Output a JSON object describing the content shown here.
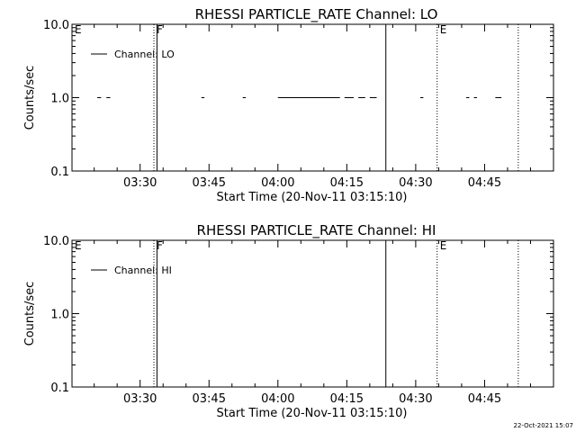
{
  "timestamp": "22-Oct-2021 15:07",
  "chart_data": [
    {
      "type": "line",
      "title": "RHESSI PARTICLE_RATE Channel: LO",
      "xlabel": "Start Time (20-Nov-11 03:15:10)",
      "ylabel": "Counts/sec",
      "log_y": true,
      "ylim": [
        0.1,
        10.0
      ],
      "xlim": [
        "03:15:10",
        "05:00:00"
      ],
      "y_ticks": [
        "10.0",
        "1.0",
        "0.1"
      ],
      "x_ticks": [
        "03:30",
        "03:45",
        "04:00",
        "04:15",
        "04:30",
        "04:45"
      ],
      "legend": {
        "position": "top-left",
        "label": "Channel: LO"
      },
      "series": [
        {
          "name": "Channel: LO",
          "segments": [
            [
              [
                "03:20:40",
                1.0
              ],
              [
                "03:21:30",
                1.0
              ]
            ],
            [
              [
                "03:22:40",
                1.0
              ],
              [
                "03:23:30",
                1.0
              ]
            ],
            [
              [
                "03:43:20",
                1.0
              ],
              [
                "03:44:00",
                1.0
              ]
            ],
            [
              [
                "03:52:20",
                1.0
              ],
              [
                "03:53:00",
                1.0
              ]
            ],
            [
              [
                "04:00:00",
                1.0
              ],
              [
                "04:13:30",
                1.0
              ]
            ],
            [
              [
                "04:14:30",
                1.0
              ],
              [
                "04:16:30",
                1.0
              ]
            ],
            [
              [
                "04:17:30",
                1.0
              ],
              [
                "04:19:00",
                1.0
              ]
            ],
            [
              [
                "04:20:00",
                1.0
              ],
              [
                "04:21:30",
                1.0
              ]
            ],
            [
              [
                "04:31:00",
                1.0
              ],
              [
                "04:31:40",
                1.0
              ]
            ],
            [
              [
                "04:41:00",
                1.0
              ],
              [
                "04:41:40",
                1.0
              ]
            ],
            [
              [
                "04:42:40",
                1.0
              ],
              [
                "04:43:20",
                1.0
              ]
            ],
            [
              [
                "04:47:20",
                1.0
              ],
              [
                "04:48:40",
                1.0
              ]
            ]
          ]
        }
      ],
      "markers": [
        {
          "label": "E",
          "time": "03:15:10",
          "style": "none"
        },
        {
          "label": "F",
          "time": "03:33:00",
          "style": "dotted"
        },
        {
          "label": "",
          "time": "03:33:40",
          "style": "solid"
        },
        {
          "label": "",
          "time": "04:23:30",
          "style": "solid"
        },
        {
          "label": "E",
          "time": "04:34:40",
          "style": "dotted"
        },
        {
          "label": "",
          "time": "04:52:20",
          "style": "dotted"
        }
      ]
    },
    {
      "type": "line",
      "title": "RHESSI PARTICLE_RATE Channel: HI",
      "xlabel": "Start Time (20-Nov-11 03:15:10)",
      "ylabel": "Counts/sec",
      "log_y": true,
      "ylim": [
        0.1,
        10.0
      ],
      "xlim": [
        "03:15:10",
        "05:00:00"
      ],
      "y_ticks": [
        "10.0",
        "1.0",
        "0.1"
      ],
      "x_ticks": [
        "03:30",
        "03:45",
        "04:00",
        "04:15",
        "04:30",
        "04:45"
      ],
      "legend": {
        "position": "top-left",
        "label": "Channel: HI"
      },
      "series": [
        {
          "name": "Channel: HI",
          "segments": []
        }
      ],
      "markers": [
        {
          "label": "E",
          "time": "03:15:10",
          "style": "none"
        },
        {
          "label": "F",
          "time": "03:33:00",
          "style": "dotted"
        },
        {
          "label": "",
          "time": "03:33:40",
          "style": "solid"
        },
        {
          "label": "",
          "time": "04:23:30",
          "style": "solid"
        },
        {
          "label": "E",
          "time": "04:34:40",
          "style": "dotted"
        },
        {
          "label": "",
          "time": "04:52:20",
          "style": "dotted"
        }
      ]
    }
  ]
}
